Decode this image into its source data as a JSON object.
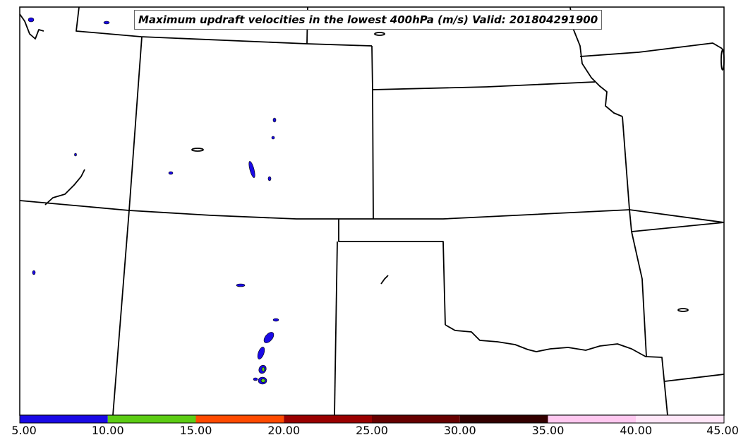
{
  "title": "Maximum updraft velocities in the lowest 400hPa (m/s) Valid: 201804291900",
  "colorbar": {
    "ticks": [
      "5.00",
      "10.00",
      "15.00",
      "20.00",
      "25.00",
      "30.00",
      "35.00",
      "40.00",
      "45.00"
    ],
    "bins": [
      {
        "range": "5.00–10.00",
        "color": "#1a0ae6"
      },
      {
        "range": "10.00–15.00",
        "color": "#5ccc14"
      },
      {
        "range": "15.00–20.00",
        "color": "#ff4a00"
      },
      {
        "range": "20.00–25.00",
        "color": "#990000"
      },
      {
        "range": "25.00–30.00",
        "color": "#660000"
      },
      {
        "range": "30.00–35.00",
        "color": "#330000"
      },
      {
        "range": "35.00–40.00",
        "color": "#ffc8f0"
      },
      {
        "range": "40.00–45.00",
        "color": "#ffe6f8"
      }
    ]
  },
  "colors": {
    "boundary": "#000000",
    "low_updraft": "#1a0ae6",
    "mid_updraft": "#5ccc14"
  }
}
